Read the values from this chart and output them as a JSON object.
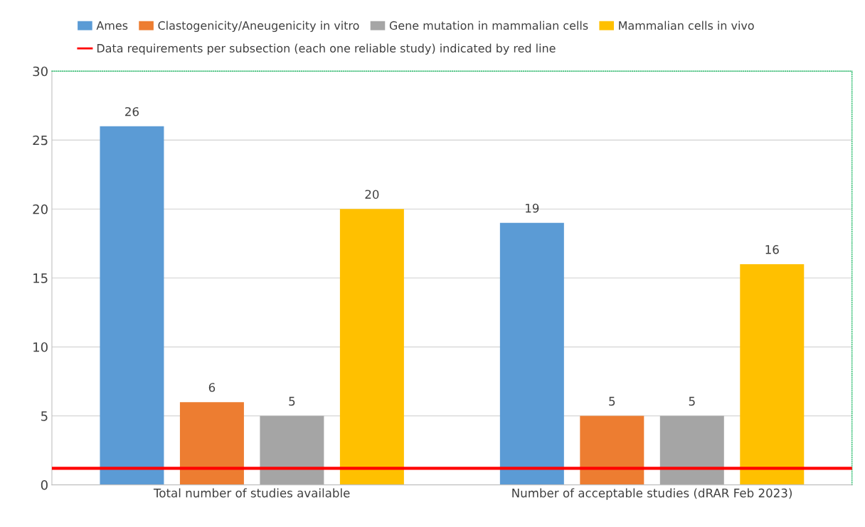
{
  "chart_data": {
    "type": "bar",
    "categories": [
      "Total number of studies available",
      "Number of acceptable studies (dRAR Feb 2023)"
    ],
    "series": [
      {
        "name": "Ames",
        "color": "#5b9bd5",
        "values": [
          26,
          19
        ]
      },
      {
        "name": "Clastogenicity/Aneugenicity in vitro",
        "color": "#ed7d31",
        "values": [
          6,
          5
        ]
      },
      {
        "name": "Gene mutation in mammalian cells",
        "color": "#a5a5a5",
        "values": [
          5,
          5
        ]
      },
      {
        "name": "Mammalian cells in vivo",
        "color": "#ffc000",
        "values": [
          20,
          16
        ]
      }
    ],
    "ylim": [
      0,
      30
    ],
    "yticks": [
      0,
      5,
      10,
      15,
      20,
      25,
      30
    ],
    "grid": "y",
    "data_labels": true,
    "legend": "top",
    "ref_lines": [
      {
        "axis": "y",
        "value": 1.2,
        "label": "Data requirements per subsection (each one reliable study) indicated by red line",
        "color": "#ff0000"
      }
    ]
  }
}
